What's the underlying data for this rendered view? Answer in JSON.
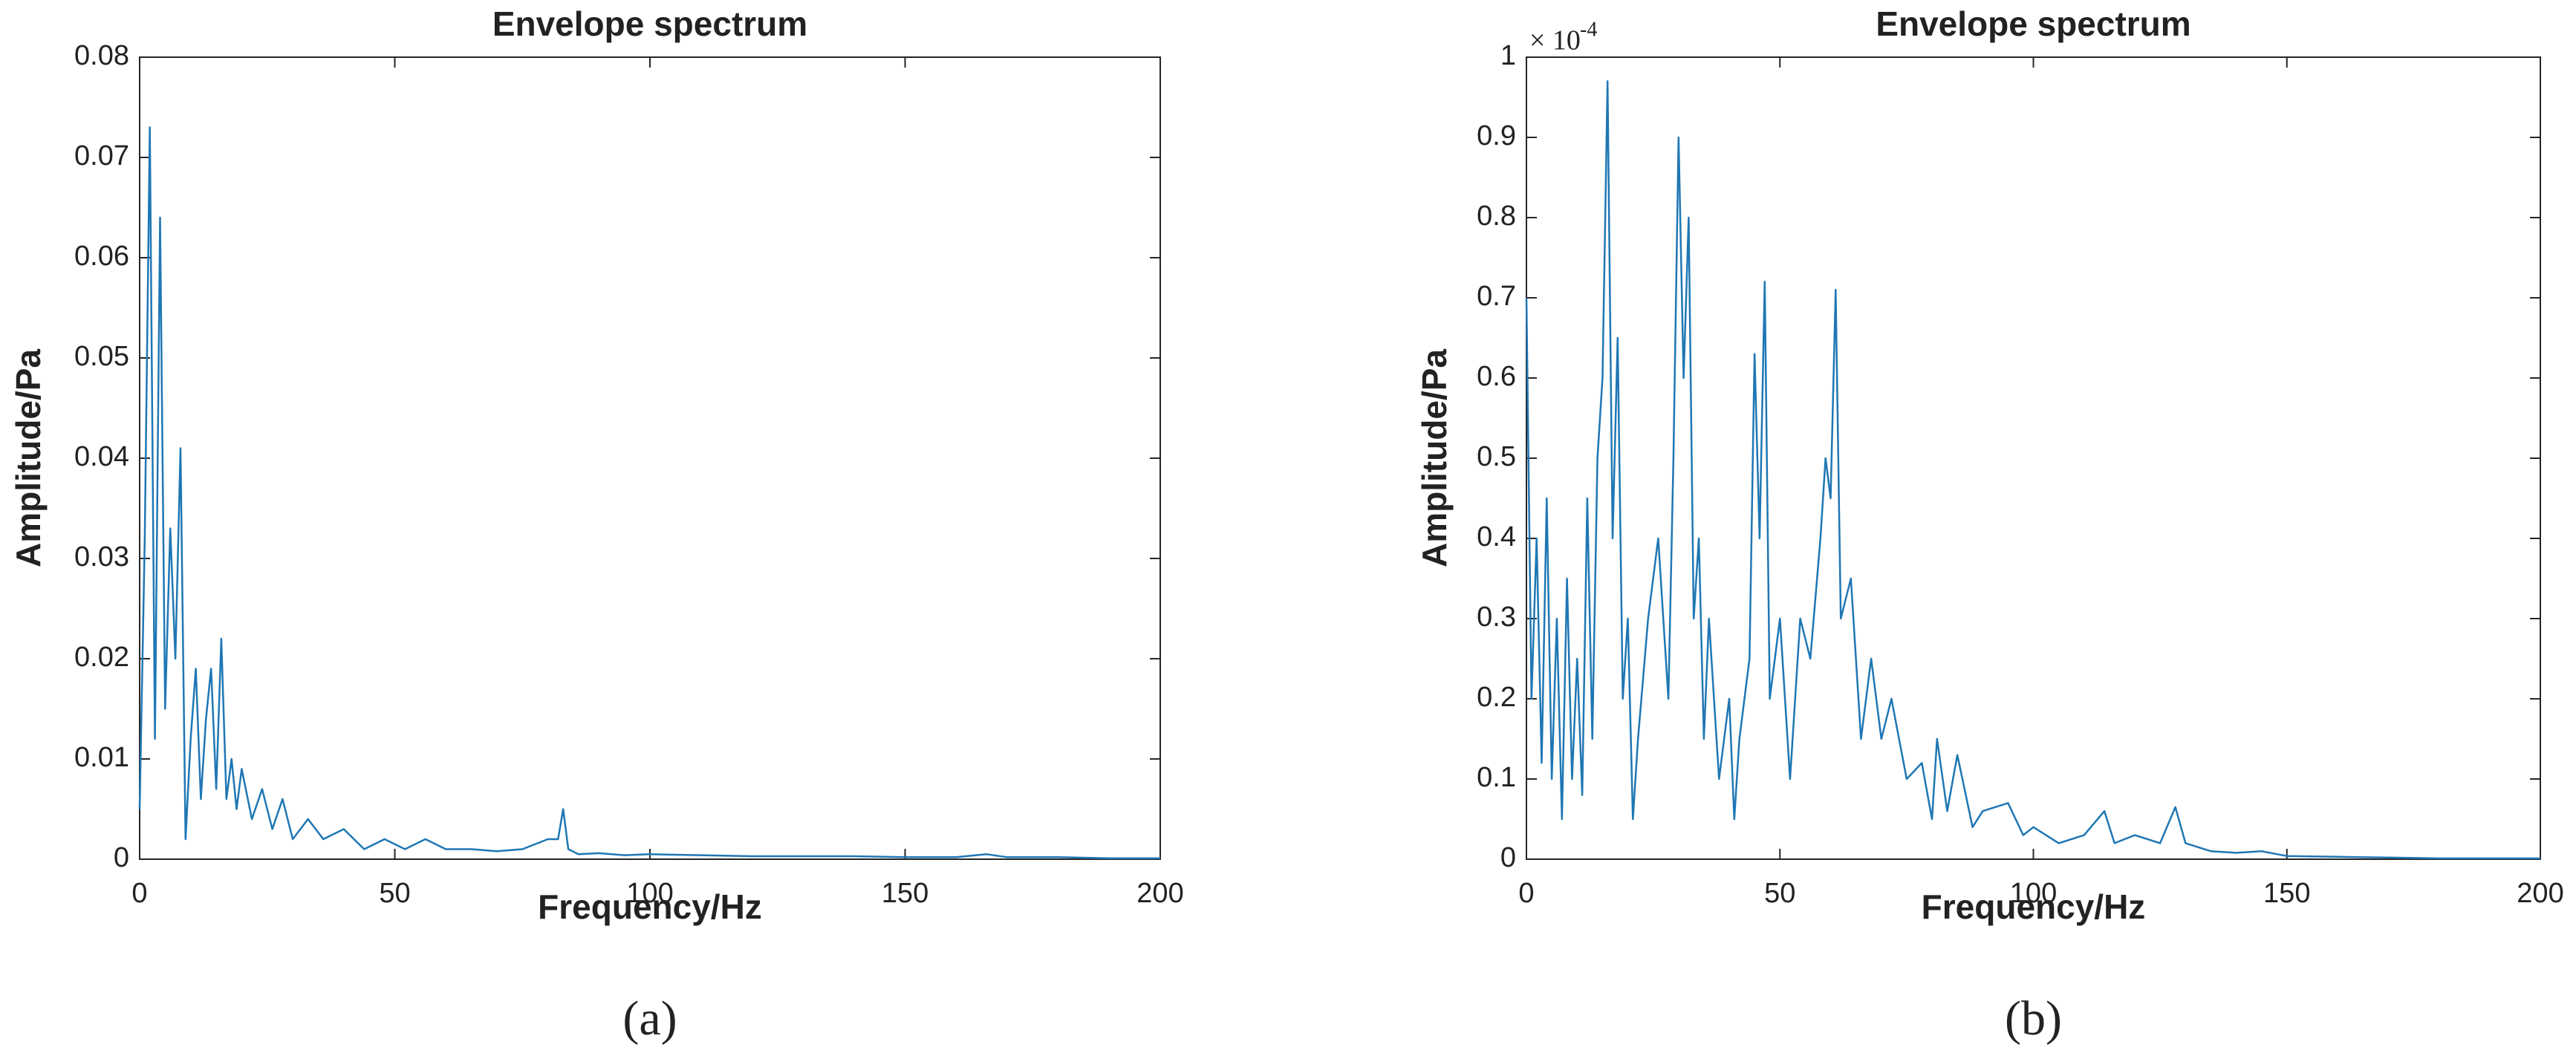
{
  "chart_data": [
    {
      "type": "line",
      "title": "Envelope spectrum",
      "xlabel": "Frequency/Hz",
      "ylabel": "Amplitude/Pa",
      "caption": "(a)",
      "color": "#1f77b4",
      "x": [
        0,
        1,
        2,
        3,
        4,
        5,
        6,
        7,
        8,
        9,
        10,
        11,
        12,
        13,
        14,
        15,
        16,
        17,
        18,
        19,
        20,
        22,
        24,
        26,
        28,
        30,
        33,
        36,
        40,
        44,
        48,
        52,
        56,
        60,
        65,
        70,
        75,
        80,
        82,
        83,
        84,
        86,
        90,
        95,
        100,
        110,
        120,
        130,
        140,
        150,
        160,
        166,
        170,
        180,
        190,
        200
      ],
      "values": [
        0.005,
        0.032,
        0.073,
        0.012,
        0.064,
        0.015,
        0.033,
        0.02,
        0.041,
        0.002,
        0.012,
        0.019,
        0.006,
        0.014,
        0.019,
        0.007,
        0.022,
        0.006,
        0.01,
        0.005,
        0.009,
        0.004,
        0.007,
        0.003,
        0.006,
        0.002,
        0.004,
        0.002,
        0.003,
        0.001,
        0.002,
        0.001,
        0.002,
        0.001,
        0.001,
        0.0008,
        0.001,
        0.002,
        0.002,
        0.005,
        0.001,
        0.0005,
        0.0006,
        0.0004,
        0.0005,
        0.0004,
        0.0003,
        0.0003,
        0.0003,
        0.0002,
        0.0002,
        0.0005,
        0.0002,
        0.0002,
        0.0001,
        0.0001
      ],
      "xlim": [
        0,
        200
      ],
      "xticks": [
        0,
        50,
        100,
        150,
        200
      ],
      "ylim": [
        0,
        0.08
      ],
      "yticks": [
        0,
        0.01,
        0.02,
        0.03,
        0.04,
        0.05,
        0.06,
        0.07,
        0.08
      ]
    },
    {
      "type": "line",
      "title": "Envelope spectrum",
      "xlabel": "Frequency/Hz",
      "ylabel": "Amplitude/Pa",
      "caption": "(b)",
      "color": "#1f77b4",
      "y_multiplier": {
        "base": "× 10",
        "exponent": "-4"
      },
      "x": [
        0,
        1,
        2,
        3,
        4,
        5,
        6,
        7,
        8,
        9,
        10,
        11,
        12,
        13,
        14,
        15,
        16,
        17,
        18,
        19,
        20,
        21,
        22,
        24,
        26,
        28,
        29,
        30,
        31,
        32,
        33,
        34,
        35,
        36,
        38,
        40,
        41,
        42,
        44,
        45,
        46,
        47,
        48,
        50,
        52,
        54,
        56,
        58,
        59,
        60,
        61,
        62,
        64,
        66,
        68,
        70,
        72,
        75,
        78,
        80,
        81,
        83,
        85,
        88,
        90,
        95,
        98,
        100,
        105,
        110,
        114,
        116,
        120,
        125,
        128,
        130,
        135,
        140,
        145,
        150,
        160,
        170,
        180,
        190,
        200
      ],
      "values": [
        0.7,
        0.2,
        0.4,
        0.12,
        0.45,
        0.1,
        0.3,
        0.05,
        0.35,
        0.1,
        0.25,
        0.08,
        0.45,
        0.15,
        0.5,
        0.6,
        0.97,
        0.4,
        0.65,
        0.2,
        0.3,
        0.05,
        0.15,
        0.3,
        0.4,
        0.2,
        0.5,
        0.9,
        0.6,
        0.8,
        0.3,
        0.4,
        0.15,
        0.3,
        0.1,
        0.2,
        0.05,
        0.15,
        0.25,
        0.63,
        0.4,
        0.72,
        0.2,
        0.3,
        0.1,
        0.3,
        0.25,
        0.4,
        0.5,
        0.45,
        0.71,
        0.3,
        0.35,
        0.15,
        0.25,
        0.15,
        0.2,
        0.1,
        0.12,
        0.05,
        0.15,
        0.06,
        0.13,
        0.04,
        0.06,
        0.07,
        0.03,
        0.04,
        0.02,
        0.03,
        0.06,
        0.02,
        0.03,
        0.02,
        0.065,
        0.02,
        0.01,
        0.008,
        0.01,
        0.004,
        0.003,
        0.002,
        0.001,
        0.001,
        0.001
      ],
      "xlim": [
        0,
        200
      ],
      "xticks": [
        0,
        50,
        100,
        150,
        200
      ],
      "ylim": [
        0,
        1
      ],
      "yticks": [
        0,
        0.1,
        0.2,
        0.3,
        0.4,
        0.5,
        0.6,
        0.7,
        0.8,
        0.9,
        1
      ]
    }
  ]
}
